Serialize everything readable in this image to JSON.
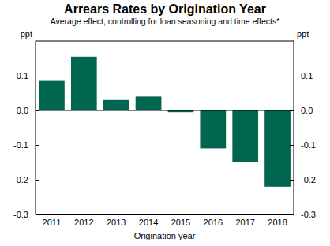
{
  "chart_data": {
    "type": "bar",
    "title": "Arrears Rates by Origination Year",
    "subtitle": "Average effect, controlling for loan seasoning and time effects*",
    "y_label": "ppt",
    "x_label": "Origination year",
    "categories": [
      "2011",
      "2012",
      "2013",
      "2014",
      "2015",
      "2016",
      "2017",
      "2018"
    ],
    "values": [
      0.085,
      0.155,
      0.03,
      0.04,
      -0.005,
      -0.11,
      -0.15,
      -0.22
    ],
    "color": "#00664f",
    "ylim": [
      -0.3,
      0.2
    ],
    "yticks": [
      {
        "value": 0.1,
        "label": "0.1"
      },
      {
        "value": 0,
        "label": "0.0"
      },
      {
        "value": -0.1,
        "label": "-0.1"
      },
      {
        "value": -0.2,
        "label": "-0.2"
      },
      {
        "value": -0.3,
        "label": "-0.3"
      }
    ],
    "grid": false
  }
}
